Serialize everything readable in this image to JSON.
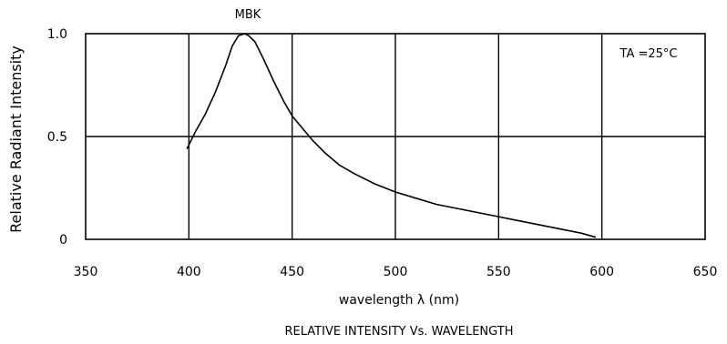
{
  "chart_data": {
    "type": "line",
    "title": "RELATIVE INTENSITY Vs. WAVELENGTH",
    "xlabel": "wavelength λ (nm)",
    "ylabel": "Relative Radiant Intensity",
    "xlim": [
      350,
      650
    ],
    "ylim": [
      0,
      1.0
    ],
    "x_ticks": [
      "350",
      "400",
      "450",
      "500",
      "550",
      "600",
      "650"
    ],
    "y_ticks": [
      "0",
      "0.5",
      "1.0"
    ],
    "grid": true,
    "annotations": {
      "curve_label": "MBK",
      "condition": "TA =25°C"
    },
    "series": [
      {
        "name": "MBK",
        "x": [
          399,
          403,
          408,
          413,
          418,
          421,
          424,
          427,
          429,
          432,
          436,
          441,
          446,
          450,
          455,
          460,
          466,
          473,
          480,
          490,
          500,
          510,
          520,
          530,
          540,
          550,
          560,
          570,
          580,
          590,
          597
        ],
        "y": [
          0.44,
          0.52,
          0.61,
          0.72,
          0.85,
          0.94,
          0.99,
          1.0,
          0.99,
          0.96,
          0.88,
          0.77,
          0.67,
          0.6,
          0.54,
          0.48,
          0.42,
          0.36,
          0.32,
          0.27,
          0.23,
          0.2,
          0.17,
          0.15,
          0.13,
          0.11,
          0.09,
          0.07,
          0.05,
          0.03,
          0.01
        ]
      }
    ]
  }
}
